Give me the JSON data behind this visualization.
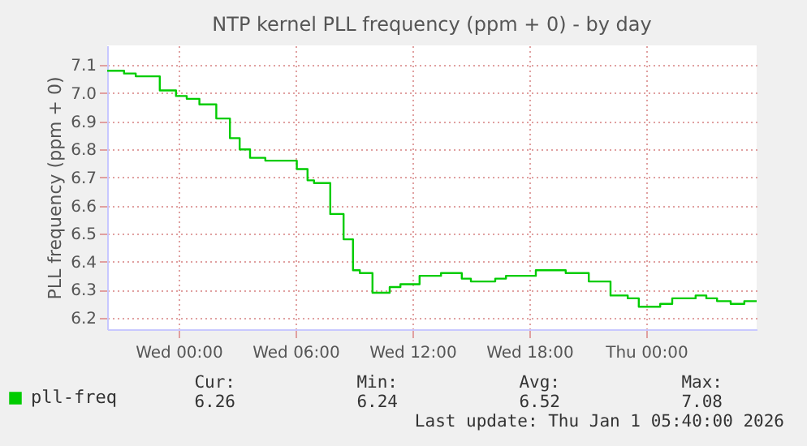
{
  "chart_data": {
    "type": "step",
    "title": "NTP kernel PLL frequency (ppm + 0) - by day",
    "ylabel": "PLL frequency (ppm + 0)",
    "x": [
      "2025-12-30T20:20",
      "2025-12-30T21:12",
      "2025-12-30T21:48",
      "2025-12-30T23:02",
      "2025-12-30T23:52",
      "2025-12-31T00:25",
      "2025-12-31T01:04",
      "2025-12-31T01:56",
      "2025-12-31T02:38",
      "2025-12-31T03:08",
      "2025-12-31T03:40",
      "2025-12-31T04:27",
      "2025-12-31T06:04",
      "2025-12-31T06:37",
      "2025-12-31T06:57",
      "2025-12-31T07:47",
      "2025-12-31T08:28",
      "2025-12-31T08:57",
      "2025-12-31T09:18",
      "2025-12-31T09:57",
      "2025-12-31T10:50",
      "2025-12-31T11:23",
      "2025-12-31T12:22",
      "2025-12-31T13:28",
      "2025-12-31T14:32",
      "2025-12-31T15:00",
      "2025-12-31T16:15",
      "2025-12-31T16:48",
      "2025-12-31T18:20",
      "2025-12-31T19:52",
      "2025-12-31T21:03",
      "2025-12-31T22:10",
      "2025-12-31T23:03",
      "2025-12-31T23:37",
      "2026-01-01T00:43",
      "2026-01-01T01:20",
      "2026-01-01T02:32",
      "2026-01-01T03:05",
      "2026-01-01T03:38",
      "2026-01-01T04:20",
      "2026-01-01T05:02",
      "2026-01-01T05:40"
    ],
    "series": [
      {
        "name": "pll-freq",
        "color": "#00cc00",
        "values": [
          7.08,
          7.07,
          7.06,
          7.01,
          6.99,
          6.98,
          6.96,
          6.91,
          6.84,
          6.8,
          6.77,
          6.76,
          6.73,
          6.69,
          6.68,
          6.57,
          6.48,
          6.37,
          6.36,
          6.29,
          6.31,
          6.32,
          6.35,
          6.36,
          6.34,
          6.33,
          6.34,
          6.35,
          6.37,
          6.36,
          6.33,
          6.28,
          6.27,
          6.24,
          6.25,
          6.27,
          6.28,
          6.27,
          6.26,
          6.25,
          6.26,
          6.26
        ]
      }
    ],
    "xlim": [
      "2025-12-30T20:20",
      "2026-01-01T05:40"
    ],
    "xticks": [
      {
        "value": "2025-12-31T00:00",
        "label": "Wed 00:00"
      },
      {
        "value": "2025-12-31T06:00",
        "label": "Wed 06:00"
      },
      {
        "value": "2025-12-31T12:00",
        "label": "Wed 12:00"
      },
      {
        "value": "2025-12-31T18:00",
        "label": "Wed 18:00"
      },
      {
        "value": "2026-01-01T00:00",
        "label": "Thu 00:00"
      }
    ],
    "ylim": [
      6.16,
      7.17
    ],
    "yticks": [
      6.2,
      6.3,
      6.4,
      6.5,
      6.6,
      6.7,
      6.8,
      6.9,
      {
        "value": 7,
        "label": "7.0"
      },
      7.1
    ],
    "grid": true,
    "legend": "bottom left",
    "annotations": [
      "Cur:",
      "6.26",
      "Min:",
      "6.24",
      "Avg:",
      "6.52",
      "Max:",
      "7.08",
      "Last update: Thu Jan  1 05:40:00 2026"
    ]
  }
}
